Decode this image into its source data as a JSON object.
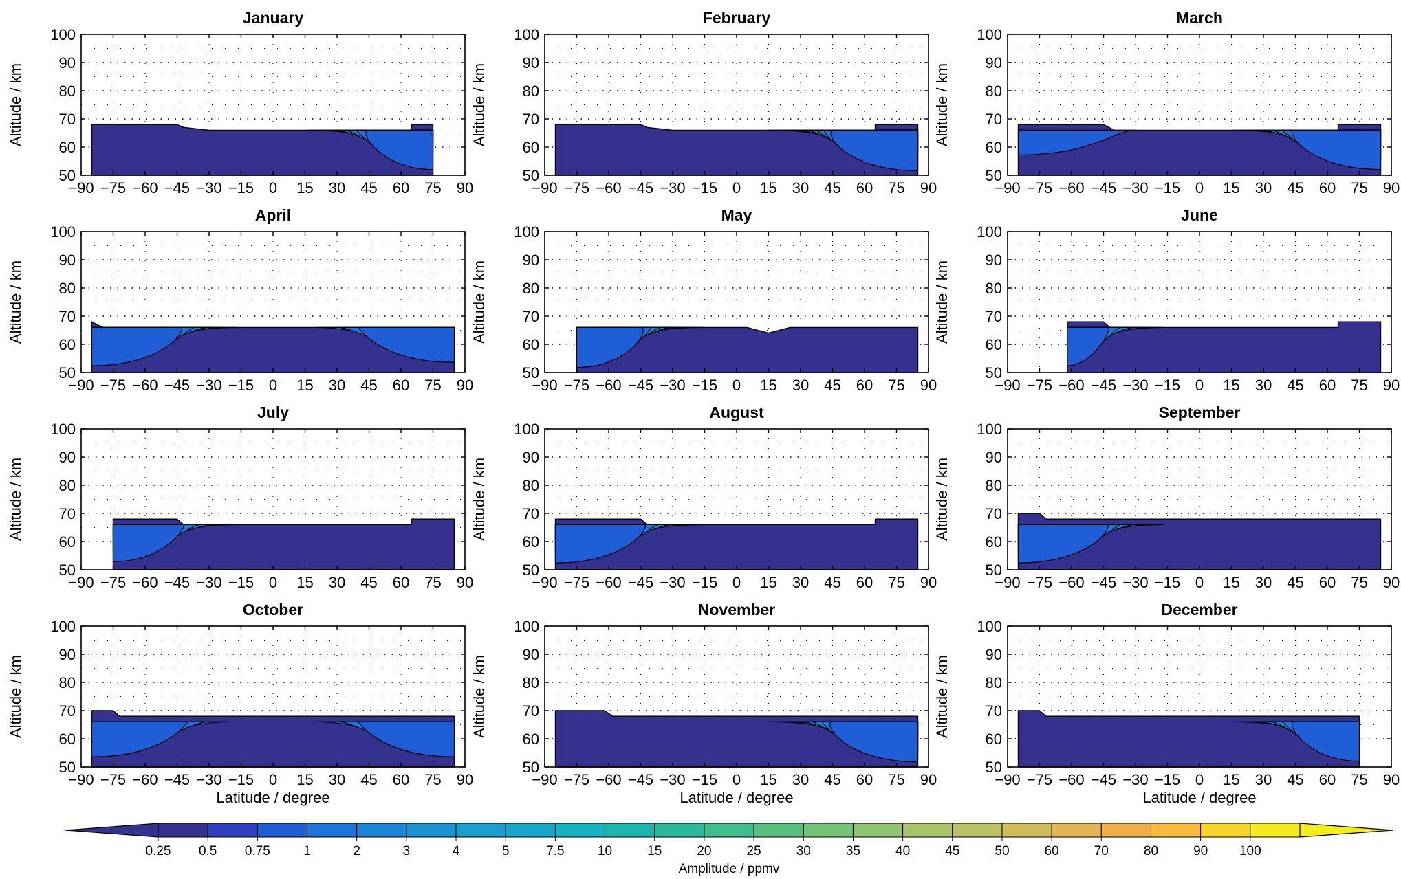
{
  "chart_data": {
    "type": "contour",
    "colorbar": {
      "label": "Amplitude / ppmv",
      "levels": [
        "0.25",
        "0.5",
        "0.75",
        "1",
        "2",
        "3",
        "4",
        "5",
        "7.5",
        "10",
        "15",
        "20",
        "25",
        "30",
        "35",
        "40",
        "45",
        "50",
        "60",
        "70",
        "80",
        "90",
        "100"
      ],
      "colors": [
        "#35318e",
        "#2f3fc0",
        "#1f5ed6",
        "#1d74dc",
        "#1c85d8",
        "#1a93d0",
        "#1c9ecf",
        "#17a6c8",
        "#17b2c0",
        "#1cb6ae",
        "#2cb99b",
        "#3fbd8c",
        "#58bf80",
        "#74c278",
        "#8fc470",
        "#a8c46a",
        "#bcc166",
        "#cfbc5f",
        "#e2b657",
        "#f0ad4c",
        "#f8bb3c",
        "#f7d42a",
        "#f5ec1e"
      ],
      "extend": "both"
    },
    "panels": [
      {
        "title": "January",
        "xticks": [
          "−90",
          "−75",
          "−60",
          "−45",
          "−30",
          "−15",
          "0",
          "15",
          "30",
          "45",
          "60",
          "75",
          "90"
        ],
        "yticks": [
          "50",
          "60",
          "70",
          "80",
          "90",
          "100"
        ],
        "ylabel": "Altitude / km",
        "xlabel": "",
        "top": [
          [
            -85,
            68
          ],
          [
            -45,
            68
          ],
          [
            -42,
            67
          ],
          [
            -30,
            66
          ],
          [
            0,
            66
          ],
          [
            65,
            66
          ],
          [
            65,
            68
          ],
          [
            75,
            68
          ]
        ],
        "south_zero": true,
        "north_bands": 6,
        "south_bands": 0
      },
      {
        "title": "February",
        "xticks": [
          "−90",
          "−75",
          "−60",
          "−45",
          "−30",
          "−15",
          "0",
          "15",
          "30",
          "45",
          "60",
          "75",
          "90"
        ],
        "yticks": [
          "50",
          "60",
          "70",
          "80",
          "90",
          "100"
        ],
        "ylabel": "Altitude / km",
        "xlabel": "",
        "top": [
          [
            -85,
            68
          ],
          [
            -45,
            68
          ],
          [
            -42,
            67
          ],
          [
            -30,
            66
          ],
          [
            0,
            66
          ],
          [
            65,
            66
          ],
          [
            65,
            68
          ],
          [
            85,
            68
          ]
        ],
        "north_bands": 8,
        "south_bands": 0
      },
      {
        "title": "March",
        "xticks": [
          "−90",
          "−75",
          "−60",
          "−45",
          "−30",
          "−15",
          "0",
          "15",
          "30",
          "45",
          "60",
          "75",
          "90"
        ],
        "yticks": [
          "50",
          "60",
          "70",
          "80",
          "90",
          "100"
        ],
        "ylabel": "Altitude / km",
        "xlabel": "",
        "top": [
          [
            -85,
            68
          ],
          [
            -45,
            68
          ],
          [
            -40,
            66
          ],
          [
            0,
            66
          ],
          [
            65,
            66
          ],
          [
            65,
            68
          ],
          [
            85,
            68
          ]
        ],
        "north_bands": 6,
        "south_bands": 1
      },
      {
        "title": "April",
        "xticks": [
          "−90",
          "−75",
          "−60",
          "−45",
          "−30",
          "−15",
          "0",
          "15",
          "30",
          "45",
          "60",
          "75",
          "90"
        ],
        "yticks": [
          "50",
          "60",
          "70",
          "80",
          "90",
          "100"
        ],
        "ylabel": "Altitude / km",
        "xlabel": "",
        "top": [
          [
            -85,
            68
          ],
          [
            -80,
            66
          ],
          [
            85,
            66
          ]
        ],
        "north_bands": 3,
        "south_bands": 5
      },
      {
        "title": "May",
        "xticks": [
          "−90",
          "−75",
          "−60",
          "−45",
          "−30",
          "−15",
          "0",
          "15",
          "30",
          "45",
          "60",
          "75",
          "90"
        ],
        "yticks": [
          "50",
          "60",
          "70",
          "80",
          "90",
          "100"
        ],
        "ylabel": "Altitude / km",
        "xlabel": "",
        "top": [
          [
            -75,
            66
          ],
          [
            5,
            66
          ],
          [
            10,
            65
          ],
          [
            15,
            64
          ],
          [
            25,
            66
          ],
          [
            85,
            66
          ]
        ],
        "start": -75,
        "north_bands": 0,
        "south_bands": 7
      },
      {
        "title": "June",
        "xticks": [
          "−90",
          "−75",
          "−60",
          "−45",
          "−30",
          "−15",
          "0",
          "15",
          "30",
          "45",
          "60",
          "75",
          "90"
        ],
        "yticks": [
          "50",
          "60",
          "70",
          "80",
          "90",
          "100"
        ],
        "ylabel": "Altitude / km",
        "xlabel": "",
        "top": [
          [
            -62,
            68
          ],
          [
            -45,
            68
          ],
          [
            -42,
            66
          ],
          [
            65,
            66
          ],
          [
            65,
            68
          ],
          [
            85,
            68
          ]
        ],
        "start": -62,
        "north_bands": 0,
        "south_bands": 5
      },
      {
        "title": "July",
        "xticks": [
          "−90",
          "−75",
          "−60",
          "−45",
          "−30",
          "−15",
          "0",
          "15",
          "30",
          "45",
          "60",
          "75",
          "90"
        ],
        "yticks": [
          "50",
          "60",
          "70",
          "80",
          "90",
          "100"
        ],
        "ylabel": "Altitude / km",
        "xlabel": "",
        "top": [
          [
            -75,
            68
          ],
          [
            -45,
            68
          ],
          [
            -42,
            66
          ],
          [
            65,
            66
          ],
          [
            65,
            68
          ],
          [
            85,
            68
          ]
        ],
        "start": -75,
        "north_bands": 0,
        "south_bands": 4
      },
      {
        "title": "August",
        "xticks": [
          "−90",
          "−75",
          "−60",
          "−45",
          "−30",
          "−15",
          "0",
          "15",
          "30",
          "45",
          "60",
          "75",
          "90"
        ],
        "yticks": [
          "50",
          "60",
          "70",
          "80",
          "90",
          "100"
        ],
        "ylabel": "Altitude / km",
        "xlabel": "",
        "top": [
          [
            -85,
            68
          ],
          [
            -45,
            68
          ],
          [
            -42,
            66
          ],
          [
            65,
            66
          ],
          [
            65,
            68
          ],
          [
            85,
            68
          ]
        ],
        "north_bands": 0,
        "south_bands": 5
      },
      {
        "title": "September",
        "xticks": [
          "−90",
          "−75",
          "−60",
          "−45",
          "−30",
          "−15",
          "0",
          "15",
          "30",
          "45",
          "60",
          "75",
          "90"
        ],
        "yticks": [
          "50",
          "60",
          "70",
          "80",
          "90",
          "100"
        ],
        "ylabel": "Altitude / km",
        "xlabel": "",
        "top": [
          [
            -85,
            70
          ],
          [
            -75,
            70
          ],
          [
            -72,
            68
          ],
          [
            85,
            68
          ]
        ],
        "north_bands": 0,
        "south_bands": 5
      },
      {
        "title": "October",
        "xticks": [
          "−90",
          "−75",
          "−60",
          "−45",
          "−30",
          "−15",
          "0",
          "15",
          "30",
          "45",
          "60",
          "75",
          "90"
        ],
        "yticks": [
          "50",
          "60",
          "70",
          "80",
          "90",
          "100"
        ],
        "ylabel": "Altitude / km",
        "xlabel": "Latitude / degree",
        "top": [
          [
            -85,
            70
          ],
          [
            -75,
            70
          ],
          [
            -72,
            68
          ],
          [
            85,
            68
          ]
        ],
        "north_bands": 3,
        "south_bands": 3
      },
      {
        "title": "November",
        "xticks": [
          "−90",
          "−75",
          "−60",
          "−45",
          "−30",
          "−15",
          "0",
          "15",
          "30",
          "45",
          "60",
          "75",
          "90"
        ],
        "yticks": [
          "50",
          "60",
          "70",
          "80",
          "90",
          "100"
        ],
        "ylabel": "Altitude / km",
        "xlabel": "Latitude / degree",
        "top": [
          [
            -85,
            70
          ],
          [
            -62,
            70
          ],
          [
            -58,
            68
          ],
          [
            85,
            68
          ]
        ],
        "north_bands": 7,
        "south_bands": 0
      },
      {
        "title": "December",
        "xticks": [
          "−90",
          "−75",
          "−60",
          "−45",
          "−30",
          "−15",
          "0",
          "15",
          "30",
          "45",
          "60",
          "75",
          "90"
        ],
        "yticks": [
          "50",
          "60",
          "70",
          "80",
          "90",
          "100"
        ],
        "ylabel": "Altitude / km",
        "xlabel": "Latitude / degree",
        "top": [
          [
            -85,
            70
          ],
          [
            -75,
            70
          ],
          [
            -72,
            68
          ],
          [
            75,
            68
          ]
        ],
        "north_bands": 6,
        "south_bands": 0
      }
    ],
    "xlim": [
      -90,
      90
    ],
    "ylim": [
      50,
      100
    ],
    "grid": "dotted"
  }
}
